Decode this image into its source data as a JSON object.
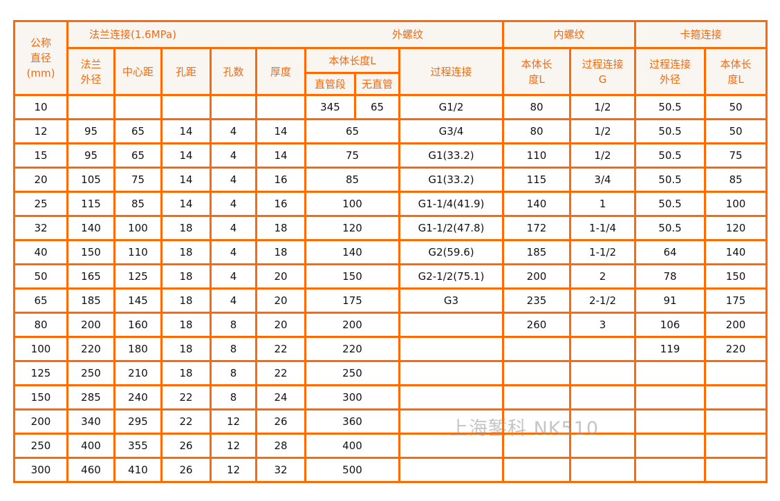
{
  "header": {
    "nominal_diameter": "公称\n直径\n(mm)",
    "flange_group": "法兰连接(1.6MPa)",
    "external_thread_group": "外螺纹",
    "internal_thread_group": "内螺纹",
    "clamp_group": "卡箍连接",
    "flange_od": "法兰\n外径",
    "center_distance": "中心距",
    "hole_distance": "孔距",
    "hole_count": "孔数",
    "thickness": "厚度",
    "body_length": "本体长度L",
    "straight_pipe": "直管段",
    "no_straight_pipe": "无直管",
    "process_connection": "过程连接",
    "int_body_length": "本体长\n度L",
    "int_process_connection": "过程连接\nG",
    "clamp_process_od": "过程连接\n外径",
    "clamp_body_length": "本体长\n度L"
  },
  "rows": [
    [
      "10",
      "",
      "",
      "",
      "",
      "",
      "345",
      "65",
      "G1/2",
      "80",
      "1/2",
      "50.5",
      "50"
    ],
    [
      "12",
      "95",
      "65",
      "14",
      "4",
      "14",
      "65",
      "",
      "G3/4",
      "80",
      "1/2",
      "50.5",
      "50"
    ],
    [
      "15",
      "95",
      "65",
      "14",
      "4",
      "14",
      "75",
      "",
      "G1(33.2)",
      "110",
      "1/2",
      "50.5",
      "75"
    ],
    [
      "20",
      "105",
      "75",
      "14",
      "4",
      "16",
      "85",
      "",
      "G1(33.2)",
      "115",
      "3/4",
      "50.5",
      "85"
    ],
    [
      "25",
      "115",
      "85",
      "14",
      "4",
      "16",
      "100",
      "",
      "G1-1/4(41.9)",
      "140",
      "1",
      "50.5",
      "100"
    ],
    [
      "32",
      "140",
      "100",
      "18",
      "4",
      "18",
      "120",
      "",
      "G1-1/2(47.8)",
      "172",
      "1-1/4",
      "50.5",
      "120"
    ],
    [
      "40",
      "150",
      "110",
      "18",
      "4",
      "18",
      "140",
      "",
      "G2(59.6)",
      "185",
      "1-1/2",
      "64",
      "140"
    ],
    [
      "50",
      "165",
      "125",
      "18",
      "4",
      "20",
      "150",
      "",
      "G2-1/2(75.1)",
      "200",
      "2",
      "78",
      "150"
    ],
    [
      "65",
      "185",
      "145",
      "18",
      "4",
      "20",
      "175",
      "",
      "G3",
      "235",
      "2-1/2",
      "91",
      "175"
    ],
    [
      "80",
      "200",
      "160",
      "18",
      "8",
      "20",
      "200",
      "",
      "",
      "260",
      "3",
      "106",
      "200"
    ],
    [
      "100",
      "220",
      "180",
      "18",
      "8",
      "22",
      "220",
      "",
      "",
      "",
      "",
      "119",
      "220"
    ],
    [
      "125",
      "250",
      "210",
      "18",
      "8",
      "22",
      "250",
      "",
      "",
      "",
      "",
      "",
      ""
    ],
    [
      "150",
      "285",
      "240",
      "22",
      "8",
      "24",
      "300",
      "",
      "",
      "",
      "",
      "",
      ""
    ],
    [
      "200",
      "340",
      "295",
      "22",
      "12",
      "26",
      "360",
      "",
      "",
      "",
      "",
      "",
      ""
    ],
    [
      "250",
      "400",
      "355",
      "26",
      "12",
      "28",
      "400",
      "",
      "",
      "",
      "",
      "",
      ""
    ],
    [
      "300",
      "460",
      "410",
      "26",
      "12",
      "32",
      "500",
      "",
      "",
      "",
      "",
      "",
      ""
    ]
  ],
  "watermark": "上海錾科 NK510",
  "colors": {
    "border": "#ff6a00",
    "header_bg": "#f9f5f0",
    "header_text": "#f26a10"
  }
}
